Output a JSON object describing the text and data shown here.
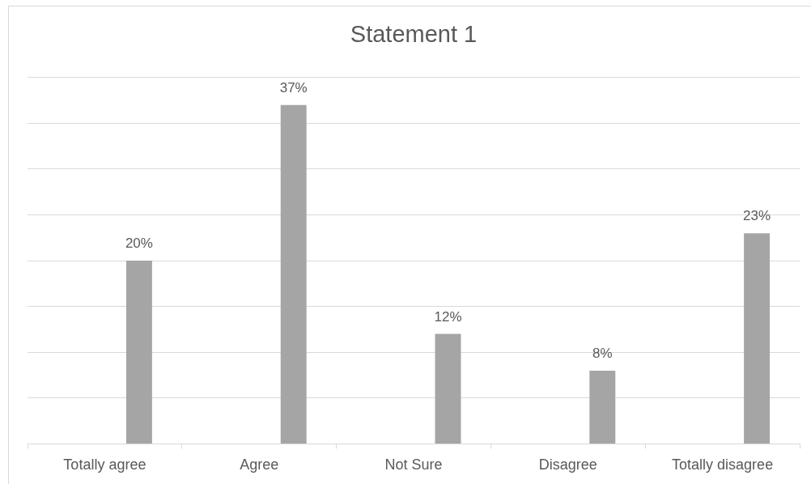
{
  "chart_data": {
    "type": "bar",
    "title": "Statement 1",
    "categories": [
      "Totally agree",
      "Agree",
      "Not Sure",
      "Disagree",
      "Totally disagree"
    ],
    "values": [
      20,
      37,
      12,
      8,
      23
    ],
    "color": "#a5a5a5",
    "value_labels": [
      "20%",
      "37%",
      "12%",
      "8%",
      "23%"
    ],
    "ylim": [
      0,
      40
    ],
    "yticks": [
      {
        "value": 0,
        "label": null
      },
      {
        "value": 5,
        "label": null
      },
      {
        "value": 10,
        "label": null
      },
      {
        "value": 15,
        "label": null
      },
      {
        "value": 20,
        "label": null
      },
      {
        "value": 25,
        "label": null
      },
      {
        "value": 30,
        "label": null
      },
      {
        "value": 35,
        "label": null
      },
      {
        "value": 40,
        "label": null
      }
    ],
    "grid": "y",
    "tick_labels": "x"
  }
}
